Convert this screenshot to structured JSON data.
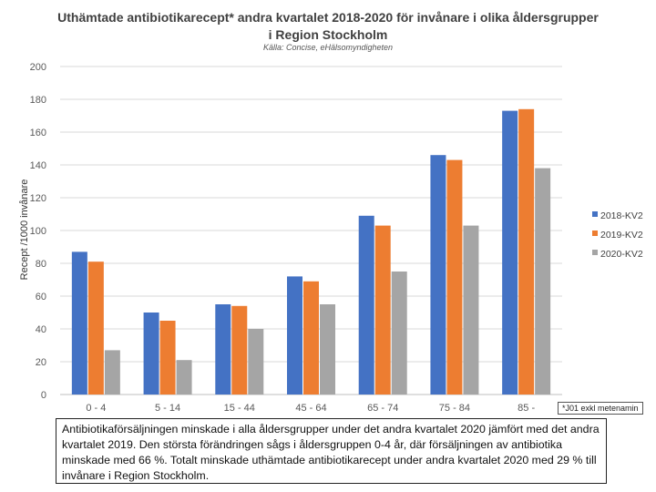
{
  "chart_data": {
    "type": "bar",
    "title": "Uthämtade antibiotikarecept* andra kvartalet 2018-2020 för invånare i olika åldersgrupper i Region Stockholm",
    "subtitle": "Källa: Concise, eHälsomyndigheten",
    "xlabel": "",
    "ylabel": "Recept /1000 invånare",
    "ylim": [
      0,
      200
    ],
    "yticks": [
      0,
      20,
      40,
      60,
      80,
      100,
      120,
      140,
      160,
      180,
      200
    ],
    "grid": true,
    "legend_position": "right",
    "categories": [
      "0 - 4",
      "5 - 14",
      "15 - 44",
      "45 - 64",
      "65 - 74",
      "75 - 84",
      "85 -"
    ],
    "series": [
      {
        "name": "2018-KV2",
        "color": "#4472C4",
        "values": [
          87,
          50,
          55,
          72,
          109,
          146,
          173
        ]
      },
      {
        "name": "2019-KV2",
        "color": "#ED7D31",
        "values": [
          81,
          45,
          54,
          69,
          103,
          143,
          174
        ]
      },
      {
        "name": "2020-KV2",
        "color": "#A5A5A5",
        "values": [
          27,
          21,
          40,
          55,
          75,
          103,
          138
        ]
      }
    ]
  },
  "footnote": "*J01 exkl metenamin",
  "note": "Antibiotikaförsäljningen minskade i alla åldersgrupper under det andra kvartalet 2020 jämfört med det andra kvartalet 2019. Den största förändringen sågs i åldersgruppen 0-4 år, där försäljningen av antibiotika minskade med 66 %. Totalt minskade uthämtade antibiotikarecept under andra kvartalet 2020 med 29 % till invånare i Region Stockholm."
}
